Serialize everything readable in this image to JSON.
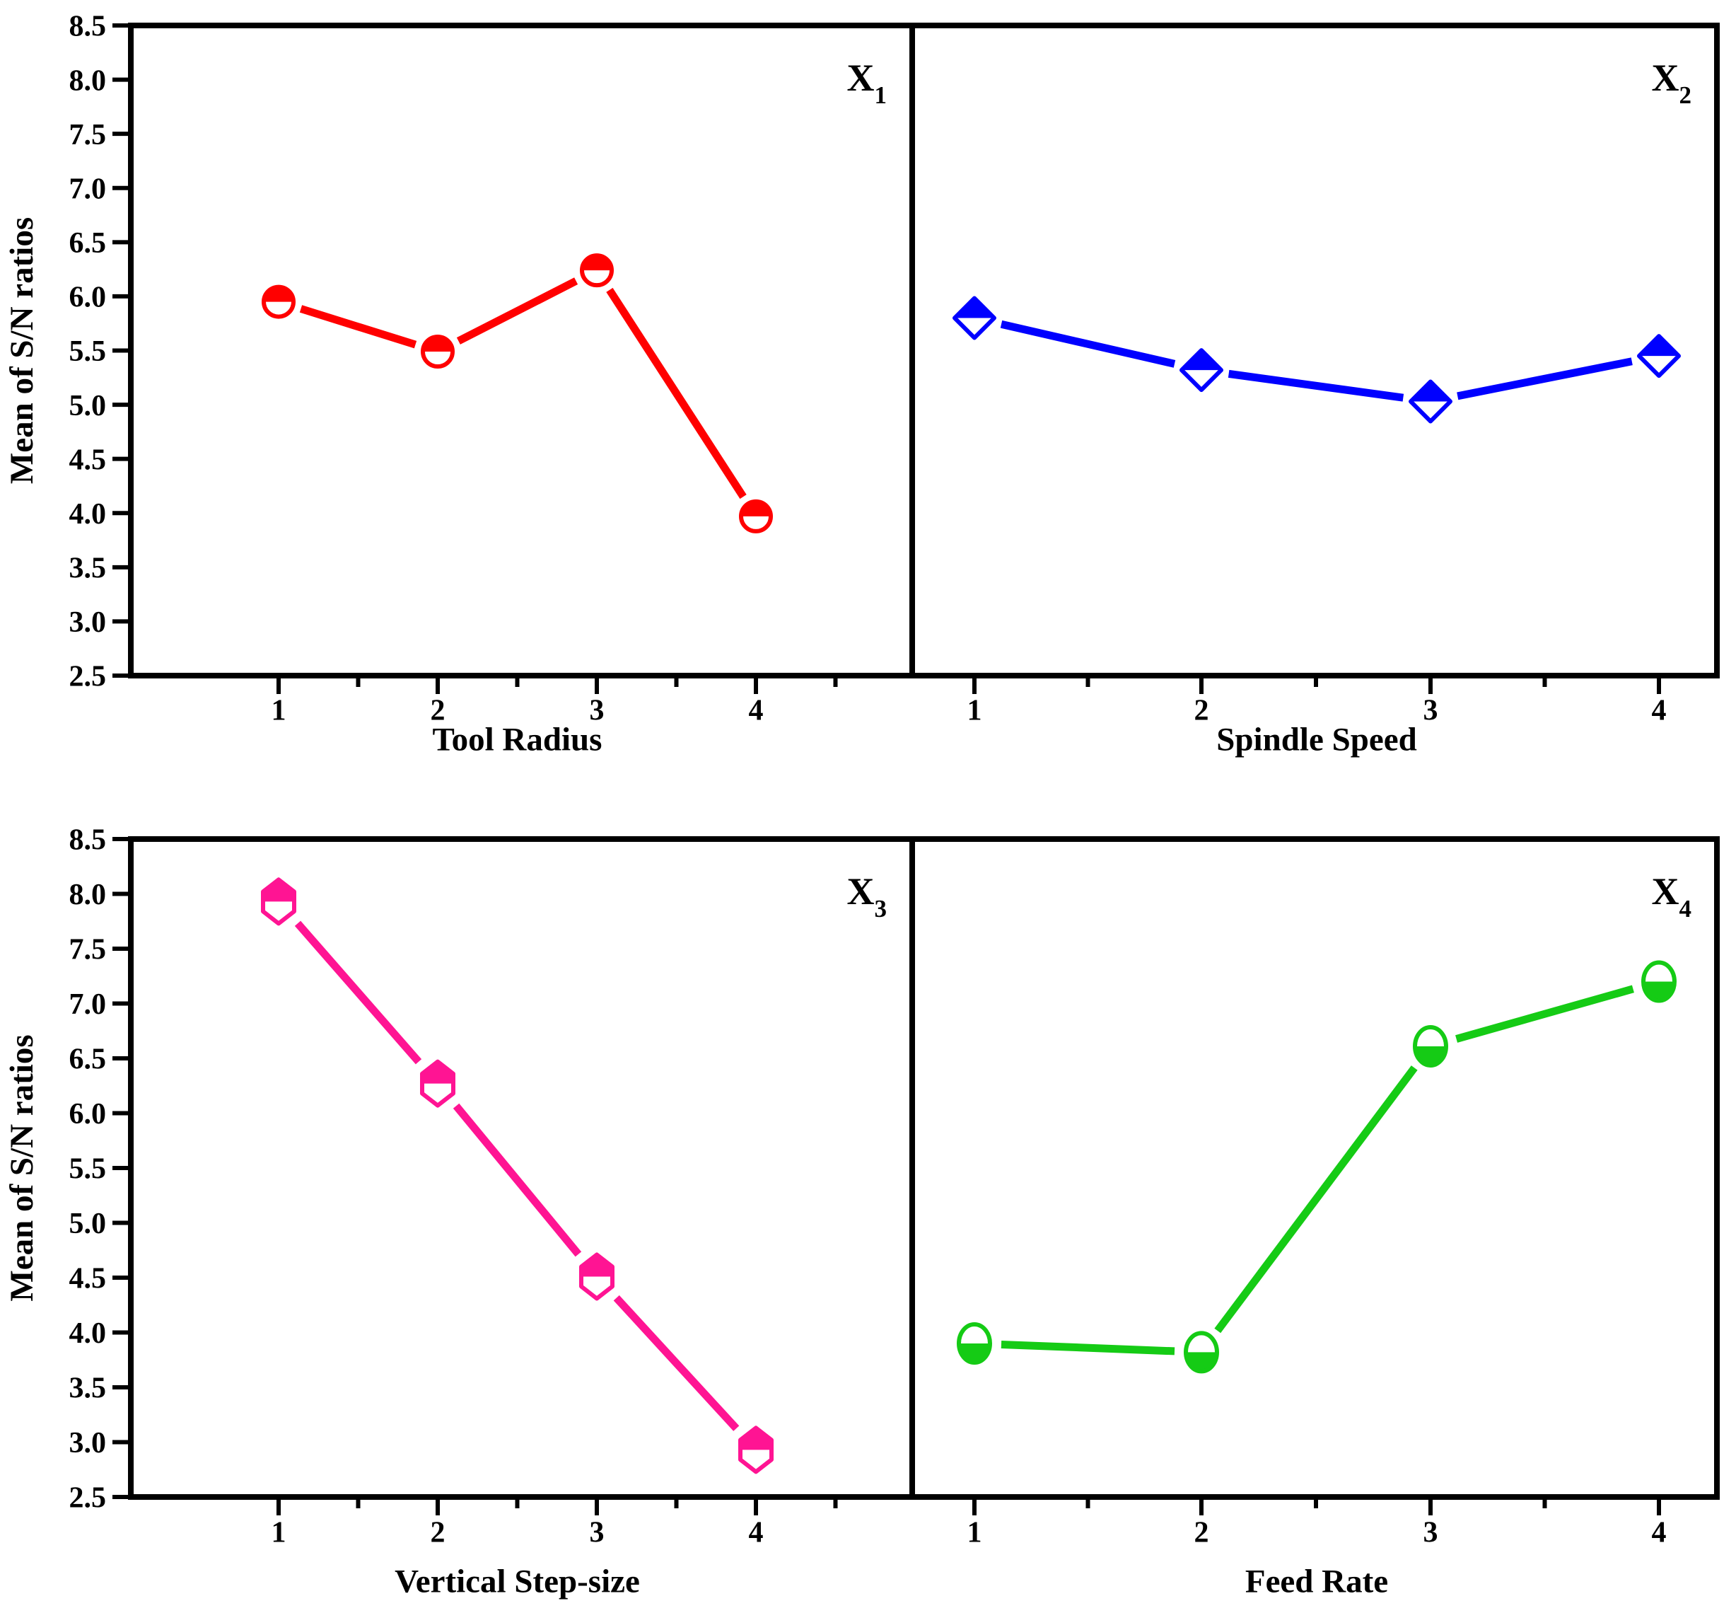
{
  "figure": {
    "background": "#FFFFFF",
    "axis_color": "#000000"
  },
  "chart_data": {
    "type": "line",
    "title": "",
    "ylabel": "Mean of S/N ratios",
    "xlabel": "",
    "ylim": [
      2.5,
      8.5
    ],
    "ytick_step": 0.5,
    "grid": false,
    "legend": "none",
    "x": [
      1,
      2,
      3,
      4
    ],
    "xtick_labels": [
      "1",
      "2",
      "3",
      "4"
    ],
    "panels": [
      {
        "id": "X1",
        "corner_label_base": "X",
        "corner_label_sub": "1",
        "xlabel": "Tool Radius",
        "color": "#FF0000",
        "marker": "half-top-circle",
        "values": [
          5.95,
          5.49,
          6.24,
          3.97
        ]
      },
      {
        "id": "X2",
        "corner_label_base": "X",
        "corner_label_sub": "2",
        "xlabel": "Spindle Speed",
        "color": "#0000FF",
        "marker": "half-top-diamond",
        "values": [
          5.8,
          5.32,
          5.03,
          5.45
        ]
      },
      {
        "id": "X3",
        "corner_label_base": "X",
        "corner_label_sub": "3",
        "xlabel": "Vertical Step-size",
        "color": "#FF1493",
        "marker": "half-top-hexagon",
        "values": [
          7.93,
          6.27,
          4.51,
          2.93
        ]
      },
      {
        "id": "X4",
        "corner_label_base": "X",
        "corner_label_sub": "4",
        "xlabel": "Feed Rate",
        "color": "#15CB15",
        "marker": "half-bottom-ellipse",
        "values": [
          3.9,
          3.82,
          6.61,
          7.2
        ]
      }
    ]
  }
}
